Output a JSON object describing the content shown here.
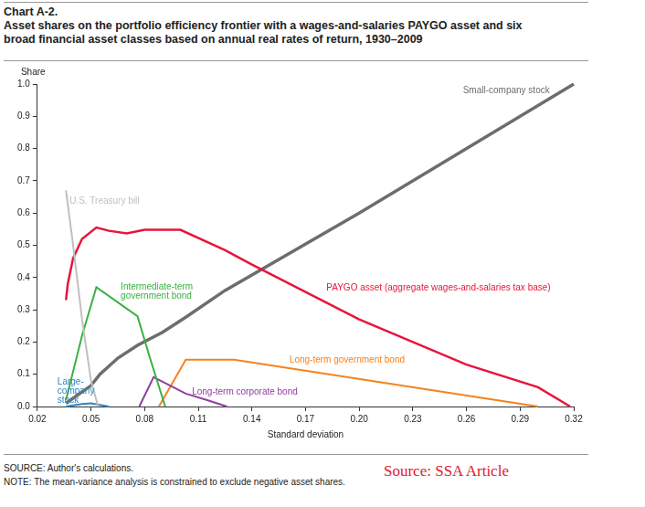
{
  "chart_data": {
    "type": "line",
    "title": "Chart A-2.",
    "subtitle": "Asset shares on the portfolio efficiency frontier with a wages-and-salaries PAYGO asset and six broad financial asset classes based on annual real rates of return, 1930–2009",
    "ylabel": "Share",
    "xlabel": "Standard deviation",
    "xlim": [
      0.02,
      0.32
    ],
    "xticks": [
      0.02,
      0.05,
      0.08,
      0.11,
      0.14,
      0.17,
      {
        "value": 0.2,
        "label": "0.20"
      },
      0.23,
      0.26,
      0.29,
      0.32
    ],
    "ylim": [
      0,
      1
    ],
    "yticks": [
      {
        "value": 0,
        "label": "0.0"
      },
      0.1,
      0.2,
      0.3,
      0.4,
      0.5,
      0.6,
      0.7,
      0.8,
      0.9,
      {
        "value": 1,
        "label": "1.0"
      }
    ],
    "grid": false,
    "series": [
      {
        "name": "U.S. Treasury bill",
        "color": "#c0c0c0",
        "x": [
          0.036,
          0.04,
          0.045,
          0.05,
          0.054
        ],
        "values": [
          0.67,
          0.5,
          0.27,
          0.08,
          0.0
        ]
      },
      {
        "name": "Intermediate-term government bond",
        "color": "#3cb043",
        "x": [
          0.036,
          0.045,
          0.053,
          0.076,
          0.083,
          0.0915
        ],
        "values": [
          0.02,
          0.22,
          0.37,
          0.28,
          0.15,
          0.0
        ]
      },
      {
        "name": "Large-company stock",
        "color": "#2e86c1",
        "x": [
          0.036,
          0.045,
          0.05,
          0.055,
          0.06
        ],
        "values": [
          0.0,
          0.008,
          0.01,
          0.005,
          0.0
        ]
      },
      {
        "name": "Long-term corporate bond",
        "color": "#8e3fa0",
        "x": [
          0.077,
          0.085,
          0.103,
          0.115,
          0.126
        ],
        "values": [
          0.0,
          0.091,
          0.04,
          0.02,
          0.0
        ]
      },
      {
        "name": "Long-term government bond",
        "color": "#f58220",
        "x": [
          0.088,
          0.103,
          0.13,
          0.3
        ],
        "values": [
          0.0,
          0.145,
          0.145,
          0.0
        ]
      },
      {
        "name": "PAYGO asset (aggregate wages-and-salaries tax base)",
        "color": "#e8143c",
        "x": [
          0.036,
          0.037,
          0.04,
          0.045,
          0.053,
          0.06,
          0.07,
          0.08,
          0.1,
          0.125,
          0.14,
          0.2,
          0.26,
          0.3,
          0.318
        ],
        "values": [
          0.33,
          0.38,
          0.46,
          0.52,
          0.555,
          0.545,
          0.537,
          0.548,
          0.548,
          0.485,
          0.44,
          0.27,
          0.13,
          0.06,
          0.0
        ]
      },
      {
        "name": "Small-company stock",
        "color": "#6d6d6d",
        "x": [
          0.036,
          0.05,
          0.055,
          0.065,
          0.076,
          0.09,
          0.103,
          0.125,
          0.2,
          0.32
        ],
        "values": [
          0.01,
          0.065,
          0.1,
          0.15,
          0.19,
          0.23,
          0.277,
          0.36,
          0.6,
          1.0
        ]
      }
    ],
    "footnotes": [
      "SOURCE: Author's calculations.",
      "NOTE: The mean-variance analysis is constrained to exclude negative asset shares."
    ],
    "credit": "Source: SSA Article"
  }
}
